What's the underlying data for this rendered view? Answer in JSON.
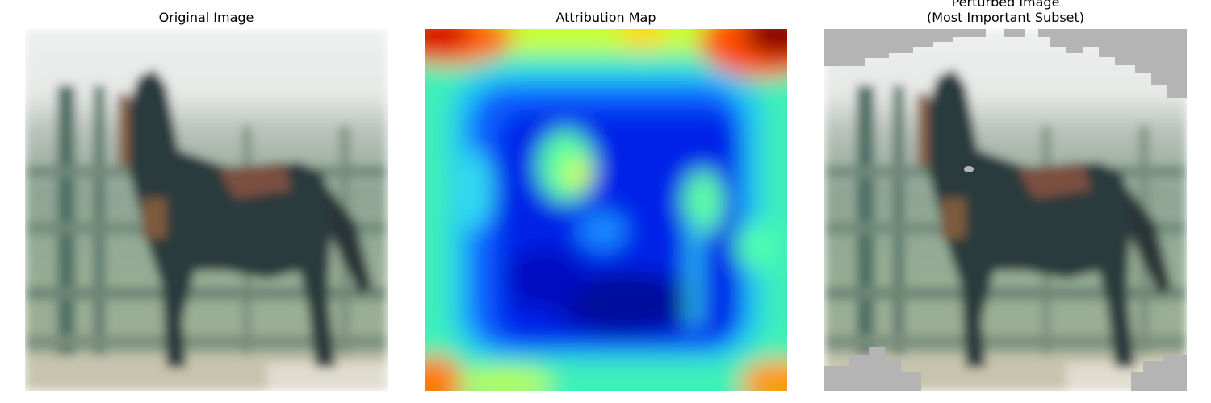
{
  "panels": [
    {
      "id": "original",
      "title": "Original Image"
    },
    {
      "id": "attribution",
      "title": "Attribution Map"
    },
    {
      "id": "perturbed",
      "title": "Perturbed Image\n(Most Important Subset)"
    }
  ],
  "image_content": {
    "subject": "horse",
    "background": "fence",
    "colormap": "jet",
    "mask_color": "#b4b4b4"
  }
}
